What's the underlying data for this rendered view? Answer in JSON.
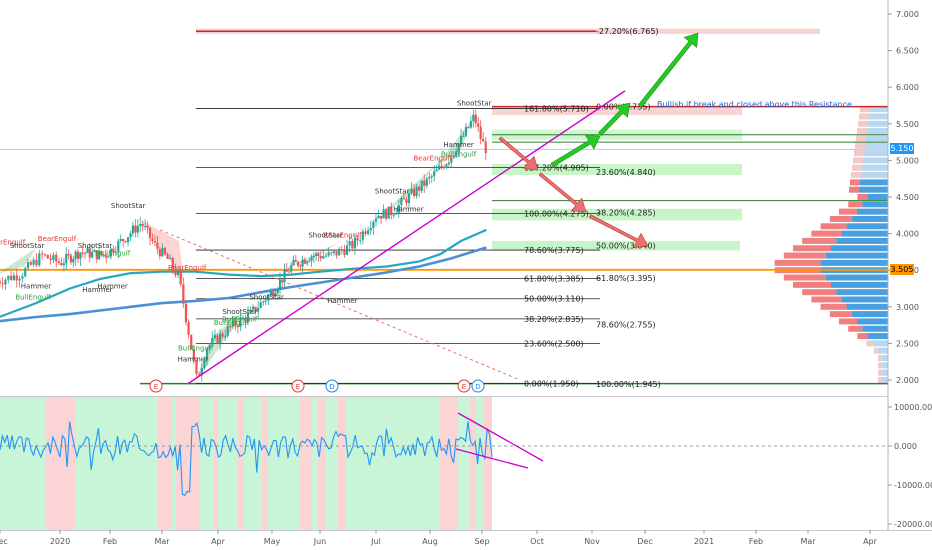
{
  "colors": {
    "bull_candle": "#26a69a",
    "bear_candle": "#ef5350",
    "bull_pattern": "#2e9e3c",
    "bear_pattern": "#e53935",
    "pattern_neutral": "#333333",
    "ma_fast": "#26a6c0",
    "ma_slow": "#4a90d9",
    "trendline": "#cc00cc",
    "fib_line": "#222222",
    "green_arrow": "#22cc22",
    "red_arrow": "#e57373",
    "zone_green": "#b9f3b9",
    "zone_red": "#f7c6c6",
    "price_badge": "#2196f3",
    "poc_badge": "#ff9800",
    "osc_line": "#2196f3",
    "osc_bg_green": "#c8f5d8",
    "osc_bg_red": "#fbd5d5",
    "vp_up": "#4a9fe0",
    "vp_down": "#f08080"
  },
  "chart_data": [
    {
      "type": "candlestick",
      "title": "",
      "x_ticks": [
        "Dec",
        "2020",
        "Feb",
        "Mar",
        "Apr",
        "May",
        "Jun",
        "Jul",
        "Aug",
        "Sep",
        "Oct",
        "Nov",
        "Dec",
        "2021",
        "Feb",
        "Mar",
        "Apr"
      ],
      "y_ticks": [
        "2.000",
        "2.500",
        "3.000",
        "3.500",
        "4.000",
        "4.500",
        "5.000",
        "5.500",
        "6.000",
        "6.500",
        "7.000"
      ],
      "ylim": [
        1.85,
        7.1
      ],
      "y_scale": "linear",
      "last_price": "5.150",
      "poc_price": "3.505",
      "annotation": "Bullish if break and closed above this Resistance",
      "event_markers": [
        {
          "label": "E",
          "month": "Mar"
        },
        {
          "label": "E",
          "month": "May"
        },
        {
          "label": "D",
          "month": "Jun"
        },
        {
          "label": "E",
          "month": "Sep"
        },
        {
          "label": "D",
          "month": "Sep"
        }
      ],
      "fib_left": [
        {
          "label": "161.80%(5.710)",
          "value": 5.71
        },
        {
          "label": "127.20%(4.905)",
          "value": 4.905
        },
        {
          "label": "100.00%(4.275)",
          "value": 4.275
        },
        {
          "label": "78.60%(3.775)",
          "value": 3.775
        },
        {
          "label": "61.80%(3.385)",
          "value": 3.385
        },
        {
          "label": "50.00%(3.110)",
          "value": 3.11
        },
        {
          "label": "38.20%(2.835)",
          "value": 2.835
        },
        {
          "label": "23.60%(2.500)",
          "value": 2.5
        },
        {
          "label": "0.00%(1.950)",
          "value": 1.95
        }
      ],
      "fib_right": [
        {
          "label": "-27.20%(6.765)",
          "value": 6.765
        },
        {
          "label": "0.00%(5.735)",
          "value": 5.735
        },
        {
          "label": "23.60%(4.840)",
          "value": 4.84
        },
        {
          "label": "38.20%(4.285)",
          "value": 4.285
        },
        {
          "label": "50.00%(3.840)",
          "value": 3.84
        },
        {
          "label": "61.80%(3.395)",
          "value": 3.395
        },
        {
          "label": "78.60%(2.755)",
          "value": 2.755
        },
        {
          "label": "100.00%(1.945)",
          "value": 1.945
        }
      ],
      "patterns": [
        {
          "label": "BearEngulf",
          "kind": "bear"
        },
        {
          "label": "ShootStar",
          "kind": "neutral"
        },
        {
          "label": "BearEngulf",
          "kind": "bear"
        },
        {
          "label": "Hammer",
          "kind": "neutral"
        },
        {
          "label": "BullEngulf",
          "kind": "bull"
        },
        {
          "label": "ShootStar",
          "kind": "neutral"
        },
        {
          "label": "Hammer",
          "kind": "neutral"
        },
        {
          "label": "ShootStar",
          "kind": "neutral"
        },
        {
          "label": "BullEngulf",
          "kind": "bull"
        },
        {
          "label": "Hammer",
          "kind": "neutral"
        },
        {
          "label": "BearEngulf",
          "kind": "bear"
        },
        {
          "label": "BullEngulf",
          "kind": "bull"
        },
        {
          "label": "Hammer",
          "kind": "neutral"
        },
        {
          "label": "ShootStar",
          "kind": "neutral"
        },
        {
          "label": "ShootStar",
          "kind": "neutral"
        },
        {
          "label": "BullEngulf",
          "kind": "bull"
        },
        {
          "label": "BearEngulf",
          "kind": "bear"
        },
        {
          "label": "Hammer",
          "kind": "neutral"
        },
        {
          "label": "ShootStar",
          "kind": "neutral"
        },
        {
          "label": "BearEngulf",
          "kind": "bear"
        },
        {
          "label": "ShootStar",
          "kind": "neutral"
        },
        {
          "label": "Hammer",
          "kind": "neutral"
        },
        {
          "label": "BullEngulf",
          "kind": "bull"
        },
        {
          "label": "Hammer",
          "kind": "neutral"
        },
        {
          "label": "BullEngulf",
          "kind": "bull"
        },
        {
          "label": "ShootStar",
          "kind": "neutral"
        }
      ]
    },
    {
      "type": "line",
      "title": "",
      "y_ticks": [
        "10000.000",
        "0.000",
        "-10000.000",
        "-20000.000"
      ],
      "ylim": [
        -21000,
        12000
      ]
    }
  ]
}
